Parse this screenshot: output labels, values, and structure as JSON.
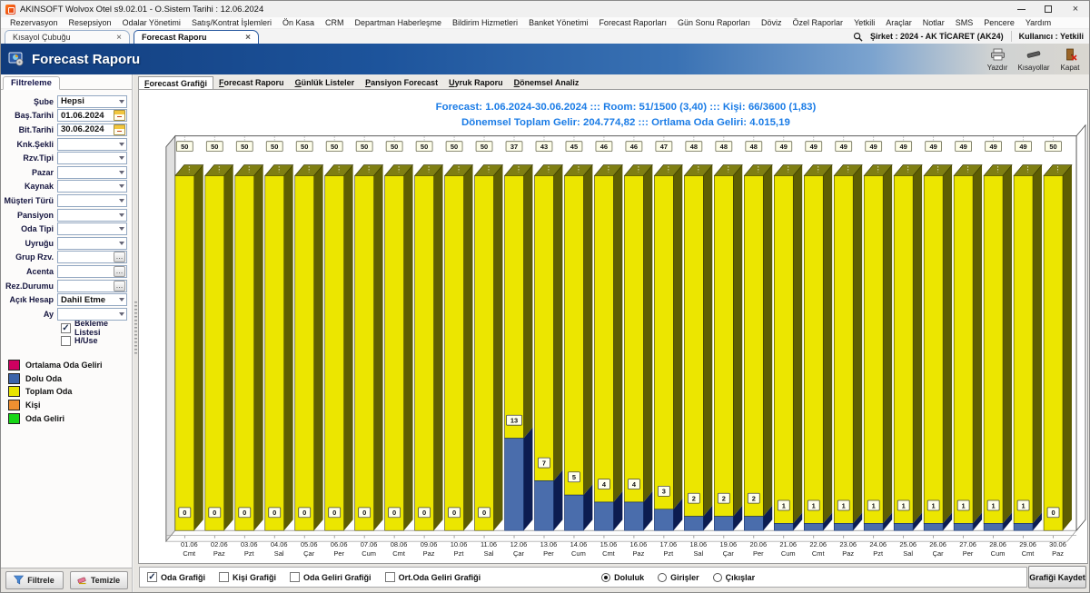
{
  "window": {
    "title": "AKINSOFT Wolvox Otel s9.02.01 - O.Sistem Tarihi : 12.06.2024"
  },
  "menubar": {
    "items": [
      "Rezervasyon",
      "Resepsiyon",
      "Odalar Yönetimi",
      "Satış/Kontrat İşlemleri",
      "Ön Kasa",
      "CRM",
      "Departman Haberleşme",
      "Bildirim Hizmetleri",
      "Banket Yönetimi",
      "Forecast Raporları",
      "Gün Sonu Raporları",
      "Döviz",
      "Özel Raporlar",
      "Yetkili",
      "Araçlar",
      "Notlar",
      "SMS",
      "Pencere",
      "Yardım"
    ]
  },
  "tabbar": {
    "tabs": [
      {
        "label": "Kısayol Çubuğu",
        "active": false
      },
      {
        "label": "Forecast Raporu",
        "active": true
      }
    ],
    "company_label": "Şirket : 2024 - AK TİCARET (AK24)",
    "user_label": "Kullanıcı : Yetkili"
  },
  "header": {
    "title": "Forecast Raporu",
    "buttons": [
      {
        "label": "Yazdır",
        "icon": "printer-icon"
      },
      {
        "label": "Kısayollar",
        "icon": "shortcut-icon"
      },
      {
        "label": "Kapat",
        "icon": "door-icon"
      }
    ]
  },
  "subtabs": [
    "Forecast Grafiği",
    "Forecast Raporu",
    "Günlük Listeler",
    "Pansiyon Forecast",
    "Uyruk Raporu",
    "Dönemsel Analiz"
  ],
  "sidebar": {
    "tab_label": "Filtreleme",
    "fields": [
      {
        "label": "Şube",
        "type": "select",
        "value": "Hepsi"
      },
      {
        "label": "Baş.Tarihi",
        "type": "date",
        "value": "01.06.2024"
      },
      {
        "label": "Bit.Tarihi",
        "type": "date",
        "value": "30.06.2024"
      },
      {
        "label": "Knk.Şekli",
        "type": "select",
        "value": ""
      },
      {
        "label": "Rzv.Tipi",
        "type": "select",
        "value": ""
      },
      {
        "label": "Pazar",
        "type": "select",
        "value": ""
      },
      {
        "label": "Kaynak",
        "type": "select",
        "value": ""
      },
      {
        "label": "Müşteri Türü",
        "type": "select",
        "value": ""
      },
      {
        "label": "Pansiyon",
        "type": "select",
        "value": ""
      },
      {
        "label": "Oda Tipi",
        "type": "select",
        "value": ""
      },
      {
        "label": "Uyruğu",
        "type": "select",
        "value": ""
      },
      {
        "label": "Grup Rzv.",
        "type": "lookup",
        "value": ""
      },
      {
        "label": "Acenta",
        "type": "lookup",
        "value": ""
      },
      {
        "label": "Rez.Durumu",
        "type": "lookup",
        "value": ""
      },
      {
        "label": "Açık Hesap",
        "type": "select",
        "value": "Dahil Etme"
      },
      {
        "label": "Ay",
        "type": "select",
        "value": ""
      }
    ],
    "checkboxes": [
      {
        "label": "Bekleme Listesi",
        "checked": true
      },
      {
        "label": "H/Use",
        "checked": false
      }
    ],
    "legend": [
      {
        "label": "Ortalama Oda Geliri",
        "color": "#cf0060"
      },
      {
        "label": "Dolu Oda",
        "color": "#3c64aa"
      },
      {
        "label": "Toplam Oda",
        "color": "#e8e400"
      },
      {
        "label": "Kişi",
        "color": "#ef8f31"
      },
      {
        "label": "Oda Geliri",
        "color": "#17d617"
      }
    ],
    "buttons": [
      {
        "label": "Filtrele",
        "icon": "funnel-icon"
      },
      {
        "label": "Temizle",
        "icon": "eraser-icon"
      }
    ]
  },
  "chart_data": {
    "type": "bar",
    "stacked": true,
    "title_line1": "Forecast: 1.06.2024-30.06.2024  :::  Room: 51/1500 (3,40)  :::  Kişi: 66/3600 (1,83)",
    "title_line2": "Dönemsel Toplam Gelir: 204.774,82  :::  Ortlama Oda Geliri: 4.015,19",
    "categories": [
      "01.06",
      "02.06",
      "03.06",
      "04.06",
      "05.06",
      "06.06",
      "07.06",
      "08.06",
      "09.06",
      "10.06",
      "11.06",
      "12.06",
      "13.06",
      "14.06",
      "15.06",
      "16.06",
      "17.06",
      "18.06",
      "19.06",
      "20.06",
      "21.06",
      "22.06",
      "23.06",
      "24.06",
      "25.06",
      "26.06",
      "27.06",
      "28.06",
      "29.06",
      "30.06"
    ],
    "day_labels": [
      "Cmt",
      "Paz",
      "Pzt",
      "Sal",
      "Çar",
      "Per",
      "Cum",
      "Cmt",
      "Paz",
      "Pzt",
      "Sal",
      "Çar",
      "Per",
      "Cum",
      "Cmt",
      "Paz",
      "Pzt",
      "Sal",
      "Çar",
      "Per",
      "Cum",
      "Cmt",
      "Paz",
      "Pzt",
      "Sal",
      "Çar",
      "Per",
      "Cum",
      "Cmt",
      "Paz"
    ],
    "series": [
      {
        "name": "Dolu Oda",
        "color": "#4a6dac",
        "values": [
          0,
          0,
          0,
          0,
          0,
          0,
          0,
          0,
          0,
          0,
          0,
          13,
          7,
          5,
          4,
          4,
          3,
          2,
          2,
          2,
          1,
          1,
          1,
          1,
          1,
          1,
          1,
          1,
          1,
          0
        ]
      },
      {
        "name": "Toplam Oda",
        "color": "#ece600",
        "values": [
          50,
          50,
          50,
          50,
          50,
          50,
          50,
          50,
          50,
          50,
          50,
          37,
          43,
          45,
          46,
          46,
          47,
          48,
          48,
          48,
          49,
          49,
          49,
          49,
          49,
          49,
          49,
          49,
          49,
          50
        ]
      }
    ],
    "ylim": [
      0,
      50
    ],
    "colors": {
      "yellow_front": "#ece600",
      "yellow_top": "#7f7f12",
      "yellow_side": "#5d5d02",
      "blue_front": "#4a6dac",
      "blue_side": "#0c1c50",
      "wall": "#e0e0e0",
      "label_box": "#fdfdea",
      "label_border": "#6a6a50",
      "title_blue": "#1b7ce6"
    }
  },
  "bottombar": {
    "checkboxes": [
      {
        "label": "Oda Grafiği",
        "checked": true
      },
      {
        "label": "Kişi Grafiği",
        "checked": false
      },
      {
        "label": "Oda Geliri Grafiği",
        "checked": false
      },
      {
        "label": "Ort.Oda Geliri Grafiği",
        "checked": false
      }
    ],
    "radios": [
      {
        "label": "Doluluk",
        "selected": true
      },
      {
        "label": "Girişler",
        "selected": false
      },
      {
        "label": "Çıkışlar",
        "selected": false
      }
    ],
    "save_button": "Grafiği Kaydet"
  }
}
